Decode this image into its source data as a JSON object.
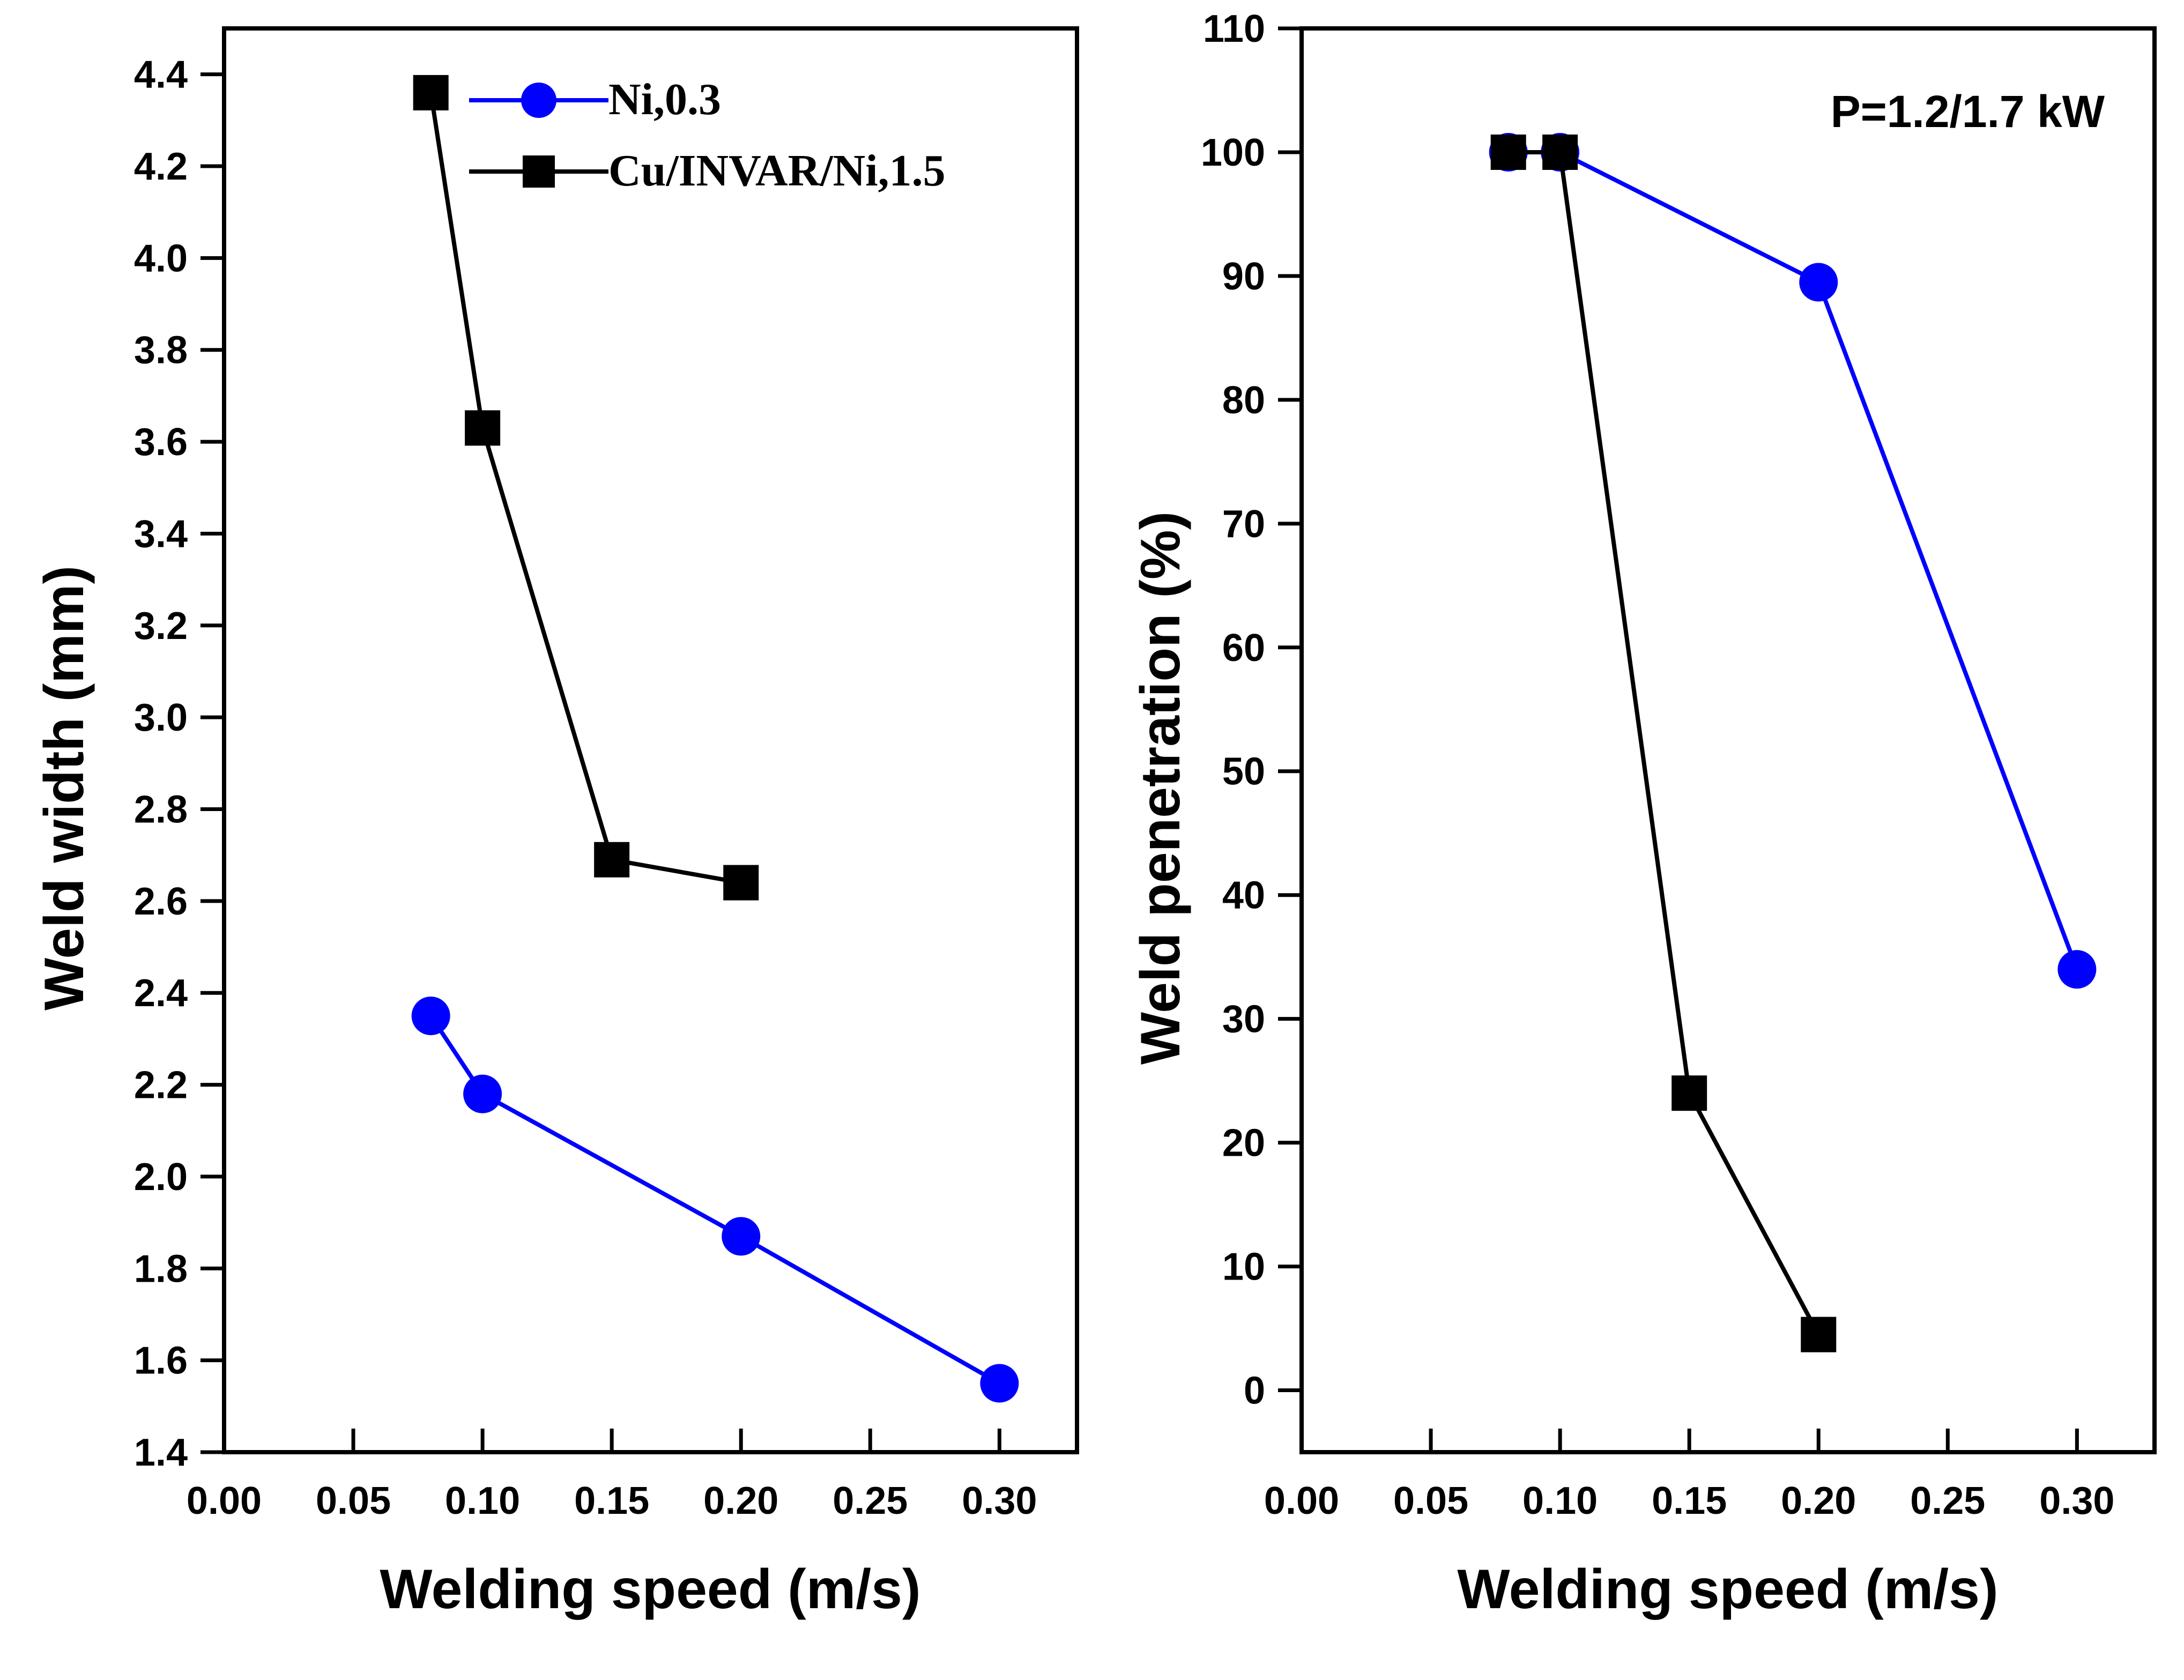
{
  "chart_data": [
    {
      "type": "line",
      "title": "",
      "xlabel": "Welding speed (m/s)",
      "ylabel": "Weld width (mm)",
      "xlim": [
        0.0,
        0.33
      ],
      "ylim": [
        1.4,
        4.5
      ],
      "xticks": [
        0.0,
        0.05,
        0.1,
        0.15,
        0.2,
        0.25,
        0.3
      ],
      "xtick_labels": [
        "0.00",
        "0.05",
        "0.10",
        "0.15",
        "0.20",
        "0.25",
        "0.30"
      ],
      "yticks": [
        1.4,
        1.6,
        1.8,
        2.0,
        2.2,
        2.4,
        2.6,
        2.8,
        3.0,
        3.2,
        3.4,
        3.6,
        3.8,
        4.0,
        4.2,
        4.4
      ],
      "ytick_labels": [
        "1.4",
        "1.6",
        "1.8",
        "2.0",
        "2.2",
        "2.4",
        "2.6",
        "2.8",
        "3.0",
        "3.2",
        "3.4",
        "3.6",
        "3.8",
        "4.0",
        "4.2",
        "4.4"
      ],
      "grid": false,
      "legend": {
        "position": "top-right"
      },
      "series": [
        {
          "name": "Ni,0.3",
          "color": "#0000ff",
          "marker": "circle",
          "x": [
            0.08,
            0.1,
            0.2,
            0.3
          ],
          "y": [
            2.35,
            2.18,
            1.87,
            1.55
          ]
        },
        {
          "name": "Cu/INVAR/Ni,1.5",
          "color": "#000000",
          "marker": "square",
          "x": [
            0.08,
            0.1,
            0.15,
            0.2
          ],
          "y": [
            4.36,
            3.63,
            2.69,
            2.64
          ]
        }
      ]
    },
    {
      "type": "line",
      "title": "",
      "xlabel": "Welding speed (m/s)",
      "ylabel": "Weld penetration (%)",
      "annotation": "P=1.2/1.7 kW",
      "xlim": [
        0.0,
        0.33
      ],
      "ylim": [
        -5,
        110
      ],
      "xticks": [
        0.0,
        0.05,
        0.1,
        0.15,
        0.2,
        0.25,
        0.3
      ],
      "xtick_labels": [
        "0.00",
        "0.05",
        "0.10",
        "0.15",
        "0.20",
        "0.25",
        "0.30"
      ],
      "yticks": [
        0,
        10,
        20,
        30,
        40,
        50,
        60,
        70,
        80,
        90,
        100,
        110
      ],
      "ytick_labels": [
        "0",
        "10",
        "20",
        "30",
        "40",
        "50",
        "60",
        "70",
        "80",
        "90",
        "100",
        "110"
      ],
      "grid": false,
      "series": [
        {
          "name": "Ni,0.3",
          "color": "#0000ff",
          "marker": "circle",
          "x": [
            0.08,
            0.1,
            0.2,
            0.3
          ],
          "y": [
            100,
            100,
            89.5,
            34
          ]
        },
        {
          "name": "Cu/INVAR/Ni,1.5",
          "color": "#000000",
          "marker": "square",
          "x": [
            0.08,
            0.1,
            0.15,
            0.2
          ],
          "y": [
            100,
            100,
            24,
            4.5
          ]
        }
      ]
    }
  ]
}
